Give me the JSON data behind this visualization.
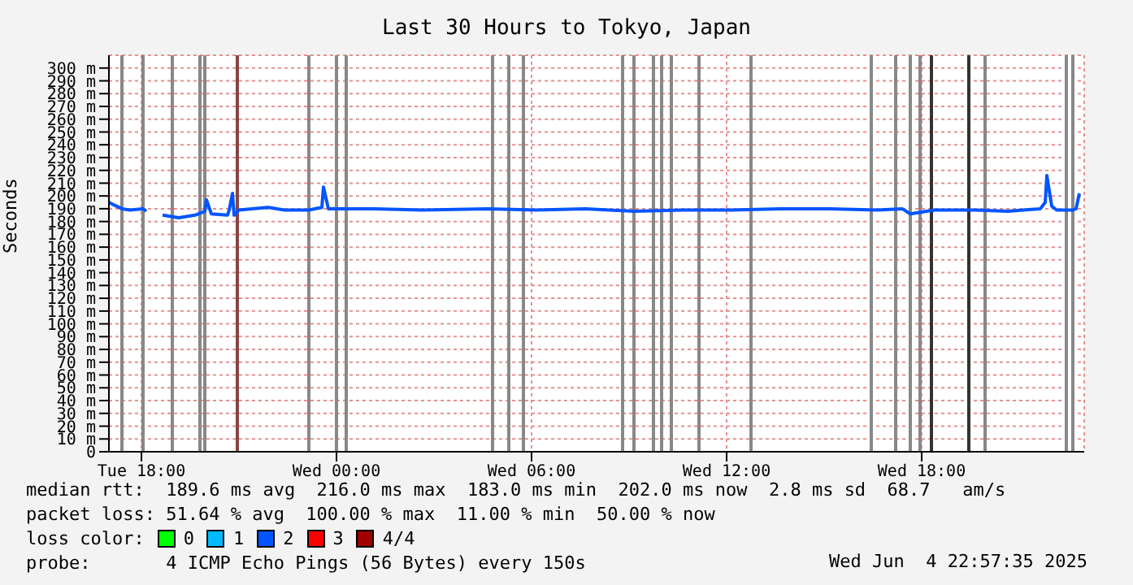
{
  "chart_data": {
    "type": "line",
    "title": "Last 30 Hours to Tokyo, Japan",
    "ylabel": "Seconds",
    "x": [
      "2025-06-03T17:00",
      "2025-06-03T17:09",
      "2025-06-03T17:24",
      "2025-06-03T17:39",
      "2025-06-03T18:03",
      "2025-06-03T18:09",
      "2025-06-03T18:24",
      "2025-06-03T18:39",
      "2025-06-03T19:09",
      "2025-06-03T19:39",
      "2025-06-03T19:57",
      "2025-06-03T20:00",
      "2025-06-03T20:09",
      "2025-06-03T20:39",
      "2025-06-03T20:42",
      "2025-06-03T20:48",
      "2025-06-03T20:51",
      "2025-06-03T21:00",
      "2025-06-03T21:24",
      "2025-06-03T21:54",
      "2025-06-03T22:24",
      "2025-06-03T23:09",
      "2025-06-03T23:33",
      "2025-06-03T23:36",
      "2025-06-03T23:45",
      "2025-06-04T00:09",
      "2025-06-04T01:09",
      "2025-06-04T02:39",
      "2025-06-04T04:39",
      "2025-06-04T06:09",
      "2025-06-04T07:39",
      "2025-06-04T09:09",
      "2025-06-04T10:39",
      "2025-06-04T12:09",
      "2025-06-04T13:39",
      "2025-06-04T15:09",
      "2025-06-04T16:39",
      "2025-06-04T17:24",
      "2025-06-04T17:39",
      "2025-06-04T18:09",
      "2025-06-04T18:24",
      "2025-06-04T19:39",
      "2025-06-04T20:39",
      "2025-06-04T21:39",
      "2025-06-04T21:48",
      "2025-06-04T21:51",
      "2025-06-04T22:00",
      "2025-06-04T22:09",
      "2025-06-04T22:39",
      "2025-06-04T22:45",
      "2025-06-04T22:51"
    ],
    "series": [
      {
        "color": "#0055ff",
        "values": [
          195,
          193,
          190,
          189,
          190,
          188,
          null,
          185,
          183,
          185,
          188,
          197,
          186,
          185,
          189,
          202,
          185,
          189,
          190,
          191,
          189,
          189,
          191,
          207,
          190,
          190,
          190,
          189,
          190,
          189,
          190,
          188,
          189,
          189,
          190,
          190,
          189,
          190,
          186,
          188,
          189,
          189,
          188,
          190,
          195,
          216,
          192,
          189,
          189,
          190,
          202
        ]
      }
    ],
    "xlim": [
      "2025-06-03T17:00",
      "2025-06-04T23:00"
    ],
    "xticks": [
      {
        "value": "2025-06-03T18:00",
        "label": "Tue 18:00"
      },
      {
        "value": "2025-06-04T00:00",
        "label": "Wed 00:00"
      },
      {
        "value": "2025-06-04T06:00",
        "label": "Wed 06:00"
      },
      {
        "value": "2025-06-04T12:00",
        "label": "Wed 12:00"
      },
      {
        "value": "2025-06-04T18:00",
        "label": "Wed 18:00"
      }
    ],
    "ylim": [
      0,
      310
    ],
    "yticks": [
      0,
      {
        "value": 10,
        "label": "10 m"
      },
      {
        "value": 20,
        "label": "20 m"
      },
      {
        "value": 30,
        "label": "30 m"
      },
      {
        "value": 40,
        "label": "40 m"
      },
      {
        "value": 50,
        "label": "50 m"
      },
      {
        "value": 60,
        "label": "60 m"
      },
      {
        "value": 70,
        "label": "70 m"
      },
      {
        "value": 80,
        "label": "80 m"
      },
      {
        "value": 90,
        "label": "90 m"
      },
      {
        "value": 100,
        "label": "100 m"
      },
      {
        "value": 110,
        "label": "110 m"
      },
      {
        "value": 120,
        "label": "120 m"
      },
      {
        "value": 130,
        "label": "130 m"
      },
      {
        "value": 140,
        "label": "140 m"
      },
      {
        "value": 150,
        "label": "150 m"
      },
      {
        "value": 160,
        "label": "160 m"
      },
      {
        "value": 170,
        "label": "170 m"
      },
      {
        "value": 180,
        "label": "180 m"
      },
      {
        "value": 190,
        "label": "190 m"
      },
      {
        "value": 200,
        "label": "200 m"
      },
      {
        "value": 210,
        "label": "210 m"
      },
      {
        "value": 220,
        "label": "220 m"
      },
      {
        "value": 230,
        "label": "230 m"
      },
      {
        "value": 240,
        "label": "240 m"
      },
      {
        "value": 250,
        "label": "250 m"
      },
      {
        "value": 260,
        "label": "260 m"
      },
      {
        "value": 270,
        "label": "270 m"
      },
      {
        "value": 280,
        "label": "280 m"
      },
      {
        "value": 290,
        "label": "290 m"
      },
      {
        "value": 300,
        "label": "300 m"
      }
    ],
    "grid": true,
    "ref_lines": [
      {
        "axis": "x",
        "value": "2025-06-03T17:24",
        "color": "#888888"
      },
      {
        "axis": "x",
        "value": "2025-06-03T18:03",
        "color": "#888888"
      },
      {
        "axis": "x",
        "value": "2025-06-03T18:57",
        "color": "#888888"
      },
      {
        "axis": "x",
        "value": "2025-06-03T19:48",
        "color": "#888888"
      },
      {
        "axis": "x",
        "value": "2025-06-03T19:57",
        "color": "#888888"
      },
      {
        "axis": "x",
        "value": "2025-06-03T20:57",
        "color": "#884444"
      },
      {
        "axis": "x",
        "value": "2025-06-03T23:09",
        "color": "#888888"
      },
      {
        "axis": "x",
        "value": "2025-06-04T00:00",
        "color": "#888888"
      },
      {
        "axis": "x",
        "value": "2025-06-04T00:18",
        "color": "#888888"
      },
      {
        "axis": "x",
        "value": "2025-06-04T04:48",
        "color": "#888888"
      },
      {
        "axis": "x",
        "value": "2025-06-04T05:18",
        "color": "#888888"
      },
      {
        "axis": "x",
        "value": "2025-06-04T05:45",
        "color": "#888888"
      },
      {
        "axis": "x",
        "value": "2025-06-04T08:48",
        "color": "#888888"
      },
      {
        "axis": "x",
        "value": "2025-06-04T09:09",
        "color": "#888888"
      },
      {
        "axis": "x",
        "value": "2025-06-04T09:45",
        "color": "#888888"
      },
      {
        "axis": "x",
        "value": "2025-06-04T10:00",
        "color": "#888888"
      },
      {
        "axis": "x",
        "value": "2025-06-04T10:18",
        "color": "#888888"
      },
      {
        "axis": "x",
        "value": "2025-06-04T11:09",
        "color": "#888888"
      },
      {
        "axis": "x",
        "value": "2025-06-04T12:45",
        "color": "#888888"
      },
      {
        "axis": "x",
        "value": "2025-06-04T16:27",
        "color": "#888888"
      },
      {
        "axis": "x",
        "value": "2025-06-04T17:12",
        "color": "#888888"
      },
      {
        "axis": "x",
        "value": "2025-06-04T17:39",
        "color": "#888888"
      },
      {
        "axis": "x",
        "value": "2025-06-04T17:57",
        "color": "#888888"
      },
      {
        "axis": "x",
        "value": "2025-06-04T18:18",
        "color": "#333333"
      },
      {
        "axis": "x",
        "value": "2025-06-04T19:27",
        "color": "#333333"
      },
      {
        "axis": "x",
        "value": "2025-06-04T19:57",
        "color": "#888888"
      },
      {
        "axis": "x",
        "value": "2025-06-04T22:27",
        "color": "#888888"
      },
      {
        "axis": "x",
        "value": "2025-06-04T22:39",
        "color": "#888888"
      }
    ],
    "annotations": [
      "median rtt:  189.6 ms avg  216.0 ms max  183.0 ms min  202.0 ms now  2.8 ms sd  68.7   am/s",
      "packet loss: 51.64 % avg  100.00 % max  11.00 % min  50.00 % now",
      "loss color:",
      "0",
      "1",
      "2",
      "3",
      "4/4",
      "probe:       4 ICMP Echo Pings (56 Bytes) every 150s",
      "Wed Jun  4 22:57:35 2025"
    ]
  }
}
